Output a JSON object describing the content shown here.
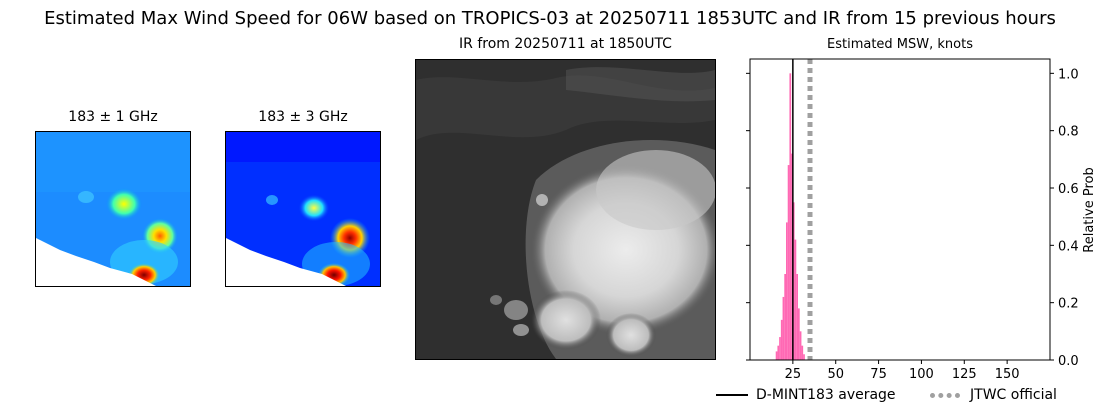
{
  "figure": {
    "title": "Estimated Max Wind Speed for 06W based on TROPICS-03 at 20250711 1853UTC and IR from 15 previous hours"
  },
  "panels": {
    "mw1_title": "183 ± 1 GHz",
    "mw3_title": "183 ± 3 GHz",
    "ir_title": "IR from 20250711 at 1850UTC"
  },
  "chart_data": {
    "type": "bar",
    "title": "Estimated MSW, knots",
    "xlabel": "",
    "ylabel": "Relative Prob",
    "xlim": [
      0,
      175
    ],
    "ylim": [
      0,
      1.05
    ],
    "xticks": [
      25,
      50,
      75,
      100,
      125,
      150
    ],
    "yticks": [
      0.0,
      0.2,
      0.4,
      0.6,
      0.8,
      1.0
    ],
    "bar_color": "#ff69b4",
    "bin_width": 1,
    "bins": [
      {
        "x": 15,
        "y": 0.03
      },
      {
        "x": 16,
        "y": 0.05
      },
      {
        "x": 17,
        "y": 0.08
      },
      {
        "x": 18,
        "y": 0.14
      },
      {
        "x": 19,
        "y": 0.22
      },
      {
        "x": 20,
        "y": 0.3
      },
      {
        "x": 21,
        "y": 0.48
      },
      {
        "x": 22,
        "y": 0.68
      },
      {
        "x": 23,
        "y": 1.0
      },
      {
        "x": 24,
        "y": 0.72
      },
      {
        "x": 25,
        "y": 0.55
      },
      {
        "x": 26,
        "y": 0.42
      },
      {
        "x": 27,
        "y": 0.3
      },
      {
        "x": 28,
        "y": 0.18
      },
      {
        "x": 29,
        "y": 0.1
      },
      {
        "x": 30,
        "y": 0.05
      },
      {
        "x": 31,
        "y": 0.02
      }
    ],
    "average_line": {
      "x": 25,
      "label": "D-MINT183 average",
      "color": "#000000"
    },
    "official_line": {
      "x": 35,
      "label": "JTWC official",
      "color": "#a0a0a0"
    }
  }
}
